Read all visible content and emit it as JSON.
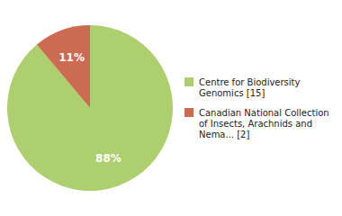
{
  "chart_data": {
    "type": "pie",
    "categories": [
      "Centre for Biodiversity\nGenomics [15]",
      "Canadian National Collection\nof Insects, Arachnids and\nNema... [2]"
    ],
    "values": [
      88,
      11
    ],
    "value_labels": [
      "88%",
      "11%"
    ],
    "colors": [
      "#aecf6e",
      "#cc6b52"
    ],
    "data_labels": true,
    "legend": "right"
  }
}
